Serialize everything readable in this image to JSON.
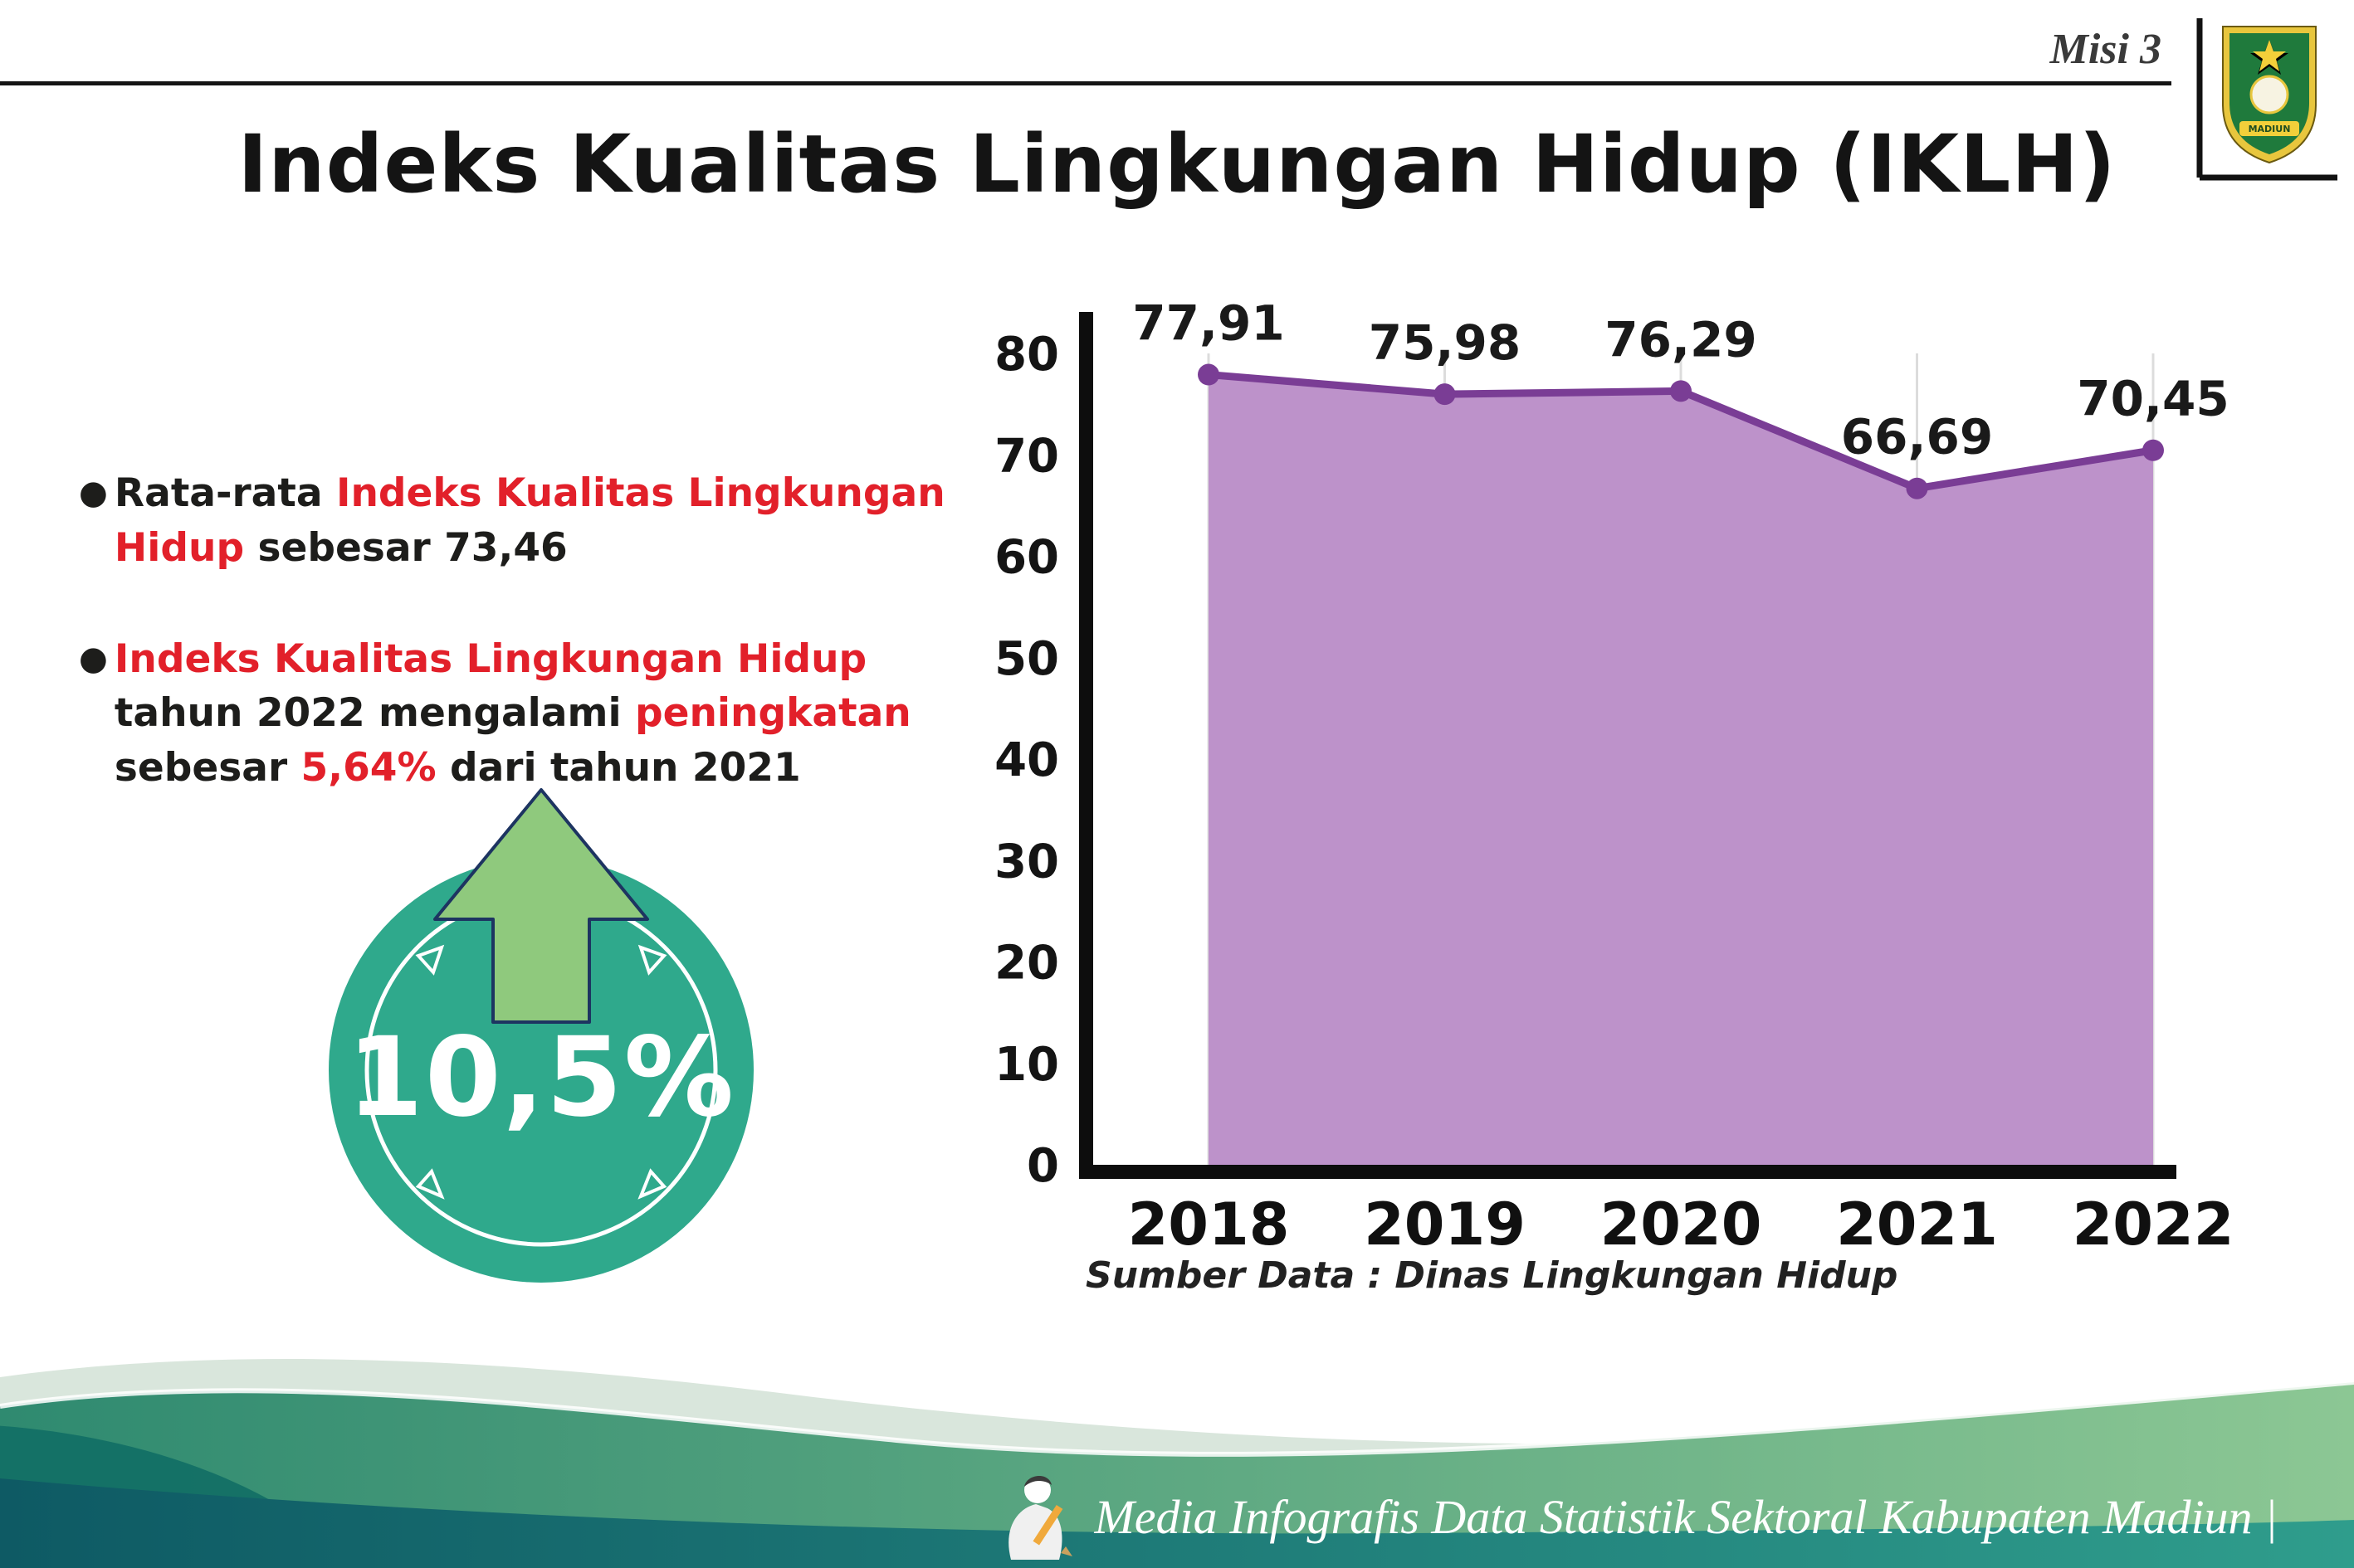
{
  "header": {
    "misi_label": "Misi 3",
    "title": "Indeks Kualitas Lingkungan Hidup (IKLH)"
  },
  "logo": {
    "name": "Kabupaten Madiun",
    "text_top": "KABUPATEN",
    "text_bottom": "MADIUN"
  },
  "bullets": [
    {
      "parts": [
        {
          "text": "Rata-rata ",
          "style": "dark"
        },
        {
          "text": "Indeks Kualitas Lingkungan Hidup",
          "style": "red"
        },
        {
          "text": " sebesar 73,46",
          "style": "dark"
        }
      ]
    },
    {
      "parts": [
        {
          "text": "Indeks Kualitas Lingkungan Hidup",
          "style": "red"
        },
        {
          "text": " tahun 2022 mengalami ",
          "style": "dark"
        },
        {
          "text": "peningkatan",
          "style": "red"
        },
        {
          "text": " sebesar ",
          "style": "dark"
        },
        {
          "text": "5,64%",
          "style": "red"
        },
        {
          "text": " dari tahun 2021",
          "style": "dark"
        }
      ]
    }
  ],
  "badge": {
    "value": "10,5%",
    "circle_color": "#2fa98c",
    "arrow_color": "#8fc97d"
  },
  "chart_data": {
    "type": "area",
    "title": "",
    "x": [
      "2018",
      "2019",
      "2020",
      "2021",
      "2022"
    ],
    "values": [
      77.91,
      75.98,
      76.29,
      66.69,
      70.45
    ],
    "labels": [
      "77,91",
      "75,98",
      "76,29",
      "66,69",
      "70,45"
    ],
    "ylim": [
      0,
      80
    ],
    "yticks": [
      0,
      10,
      20,
      30,
      40,
      50,
      60,
      70,
      80
    ],
    "xlabel": "",
    "ylabel": "",
    "grid": "vertical",
    "legend": "none",
    "line_color": "#7a3d95",
    "fill_color": "#bd92ca"
  },
  "source_label": "Sumber Data : Dinas Lingkungan Hidup",
  "footer": {
    "text": "Media Infografis Data Statistik Sektoral Kabupaten Madiun |"
  }
}
